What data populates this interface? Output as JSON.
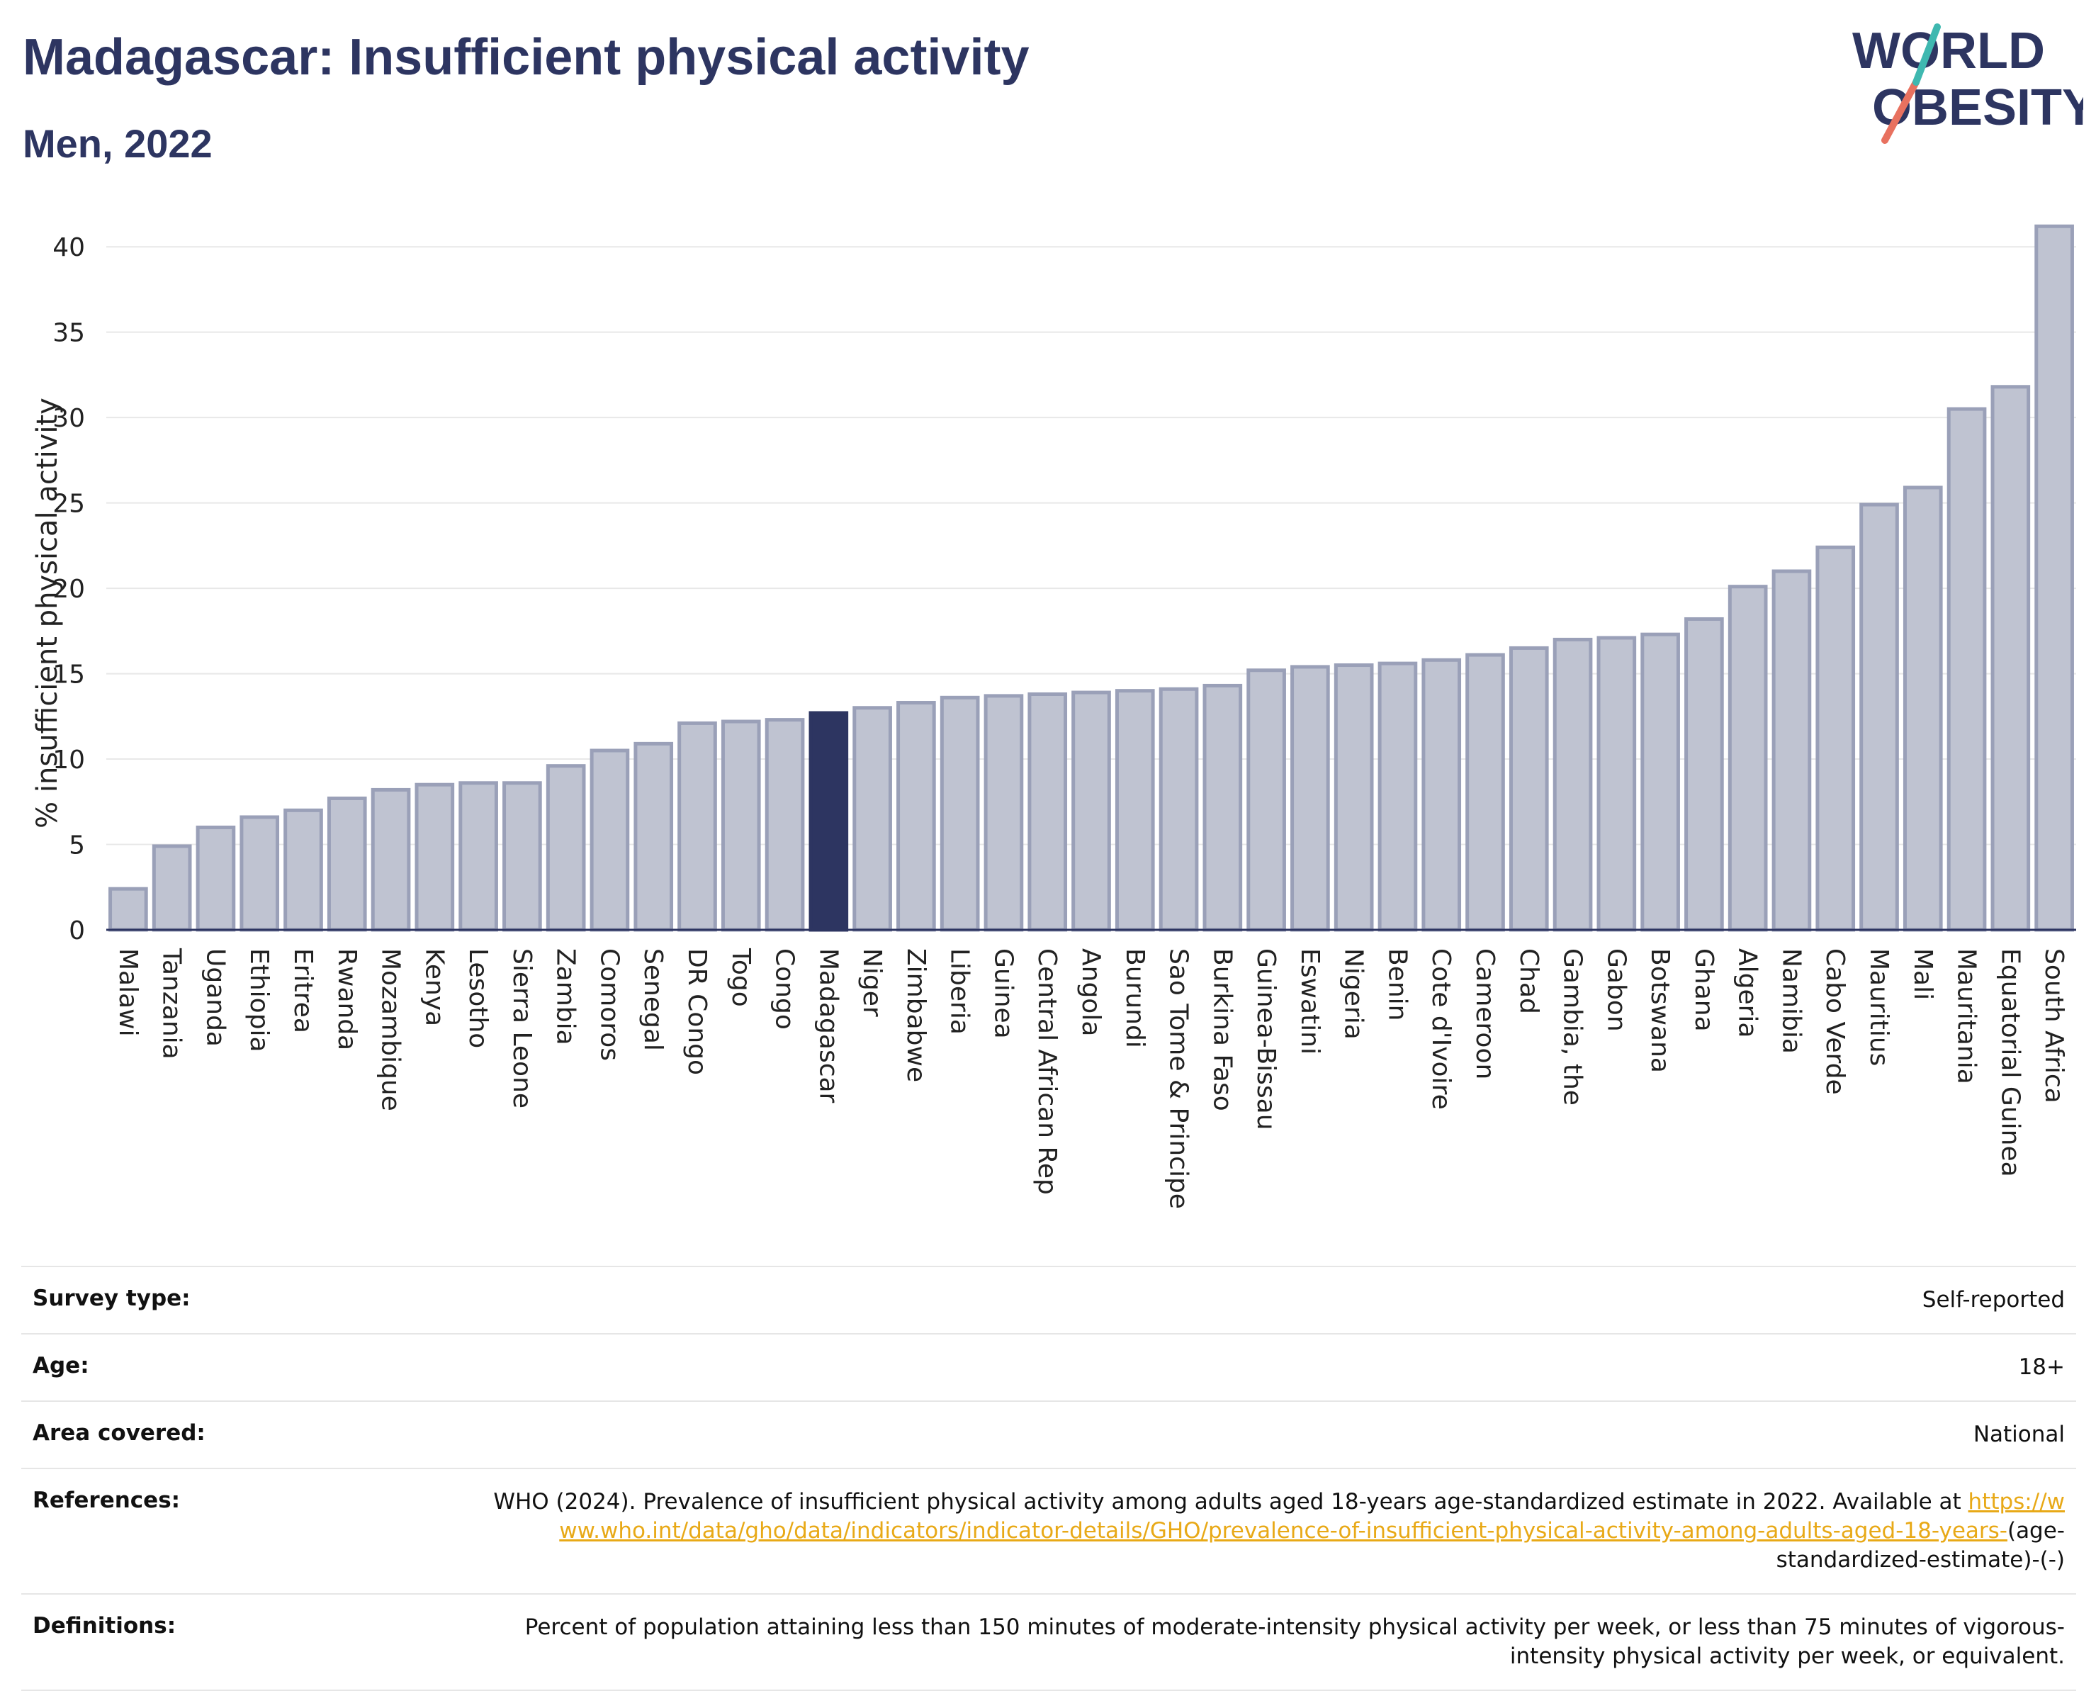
{
  "header": {
    "title": "Madagascar: Insufficient physical activity",
    "subtitle": "Men, 2022"
  },
  "logo": {
    "line1": "WORLD",
    "line2": "OBESITY"
  },
  "colors": {
    "bar": "#bfc3d1",
    "bar_border": "#9aa0b8",
    "highlight": "#2d3561",
    "grid": "#e8e8e8",
    "axis": "#2d3561"
  },
  "chart_data": {
    "type": "bar",
    "ylabel": "% insufficient physical activity",
    "ylim": [
      0,
      42
    ],
    "yticks": [
      0,
      5,
      10,
      15,
      20,
      25,
      30,
      35,
      40
    ],
    "grid": true,
    "highlight": "Madagascar",
    "categories": [
      "Malawi",
      "Tanzania",
      "Uganda",
      "Ethiopia",
      "Eritrea",
      "Rwanda",
      "Mozambique",
      "Kenya",
      "Lesotho",
      "Sierra Leone",
      "Zambia",
      "Comoros",
      "Senegal",
      "DR Congo",
      "Togo",
      "Congo",
      "Madagascar",
      "Niger",
      "Zimbabwe",
      "Liberia",
      "Guinea",
      "Central African Rep",
      "Angola",
      "Burundi",
      "Sao Tome & Principe",
      "Burkina Faso",
      "Guinea-Bissau",
      "Eswatini",
      "Nigeria",
      "Benin",
      "Cote d'Ivoire",
      "Cameroon",
      "Chad",
      "Gambia, the",
      "Gabon",
      "Botswana",
      "Ghana",
      "Algeria",
      "Namibia",
      "Cabo Verde",
      "Mauritius",
      "Mali",
      "Mauritania",
      "Equatorial Guinea",
      "South Africa"
    ],
    "values": [
      2.4,
      4.9,
      6.0,
      6.6,
      7.0,
      7.7,
      8.2,
      8.5,
      8.6,
      8.6,
      9.6,
      10.5,
      10.9,
      12.1,
      12.2,
      12.3,
      12.7,
      13.0,
      13.3,
      13.6,
      13.7,
      13.8,
      13.9,
      14.0,
      14.1,
      14.3,
      15.2,
      15.4,
      15.5,
      15.6,
      15.8,
      16.1,
      16.5,
      17.0,
      17.1,
      17.3,
      18.2,
      20.1,
      21.0,
      22.4,
      24.9,
      25.9,
      30.5,
      31.8,
      41.2
    ]
  },
  "meta": {
    "survey_type": {
      "label": "Survey type:",
      "value": "Self-reported"
    },
    "age": {
      "label": "Age:",
      "value": "18+"
    },
    "area": {
      "label": "Area covered:",
      "value": "National"
    },
    "references": {
      "label": "References:",
      "text": "WHO (2024). Prevalence of insufficient physical activity among adults aged 18-years age-standardized estimate in 2022. Available at",
      "link": "https://www.who.int/data/gho/data/indicators/indicator-details/GHO/prevalence-of-insufficient-physical-activity-among-adults-aged-18-years-",
      "suffix": "(age-standardized-estimate)-(-)"
    },
    "definitions": {
      "label": "Definitions:",
      "value": "Percent of population attaining less than 150 minutes of moderate-intensity physical activity per week, or less than 75 minutes of vigorous-intensity physical activity per week, or equivalent."
    }
  }
}
